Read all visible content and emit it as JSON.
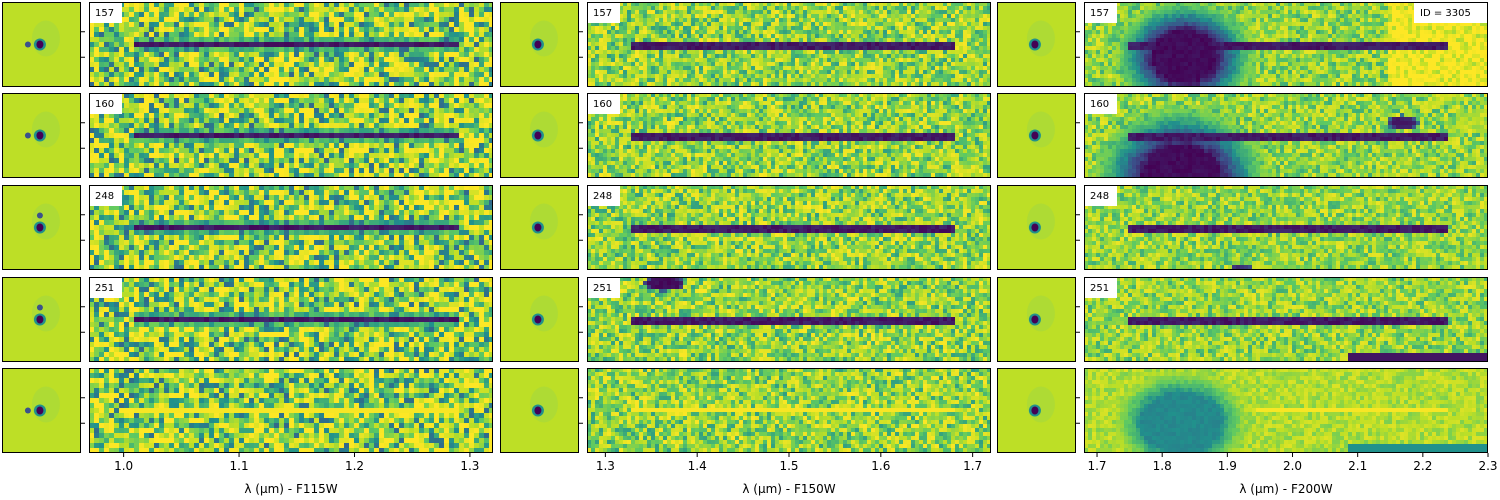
{
  "chart_data": {
    "type": "heatmap",
    "description_free": true,
    "object_id_label": "ID = 3305",
    "rows": [
      "157",
      "160",
      "248",
      "251",
      ""
    ],
    "columns": [
      {
        "filter": "F115W",
        "xlabel_prefix": "λ (μm) - ",
        "xlabel": "F115W",
        "xlim": [
          0.97,
          1.32
        ],
        "xticks": [
          "1.0",
          "1.1",
          "1.2",
          "1.3"
        ],
        "xtick_values": [
          1.0,
          1.1,
          1.2,
          1.3
        ],
        "trace_range": [
          1.01,
          1.29
        ],
        "noise_level": 0.9
      },
      {
        "filter": "F150W",
        "xlabel_prefix": "λ (μm) - ",
        "xlabel": "F150W",
        "xlim": [
          1.28,
          1.72
        ],
        "xticks": [
          "1.3",
          "1.4",
          "1.5",
          "1.6",
          "1.7"
        ],
        "xtick_values": [
          1.3,
          1.4,
          1.5,
          1.6,
          1.7
        ],
        "trace_range": [
          1.33,
          1.68
        ],
        "noise_level": 0.55
      },
      {
        "filter": "F200W",
        "xlabel_prefix": "λ (μm) - ",
        "xlabel": "F200W",
        "xlim": [
          1.68,
          2.3
        ],
        "xticks": [
          "1.7",
          "1.8",
          "1.9",
          "2.0",
          "2.1",
          "2.2",
          "2.3"
        ],
        "xtick_values": [
          1.7,
          1.8,
          1.9,
          2.0,
          2.1,
          2.2,
          2.3
        ],
        "trace_range": [
          1.75,
          2.24
        ],
        "noise_level": 0.45
      }
    ],
    "colormap": [
      "#440154",
      "#3b528b",
      "#21918c",
      "#5ec962",
      "#bddf26",
      "#fde725"
    ],
    "thumbnail_background": "#bddf26"
  }
}
